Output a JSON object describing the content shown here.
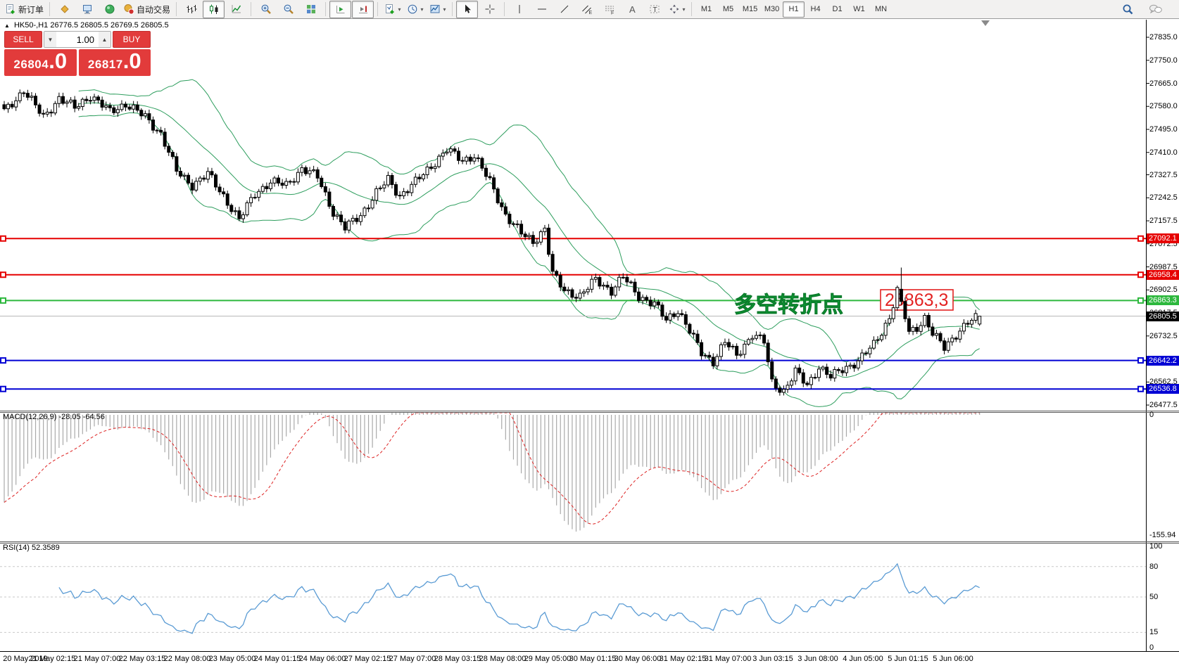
{
  "toolbar": {
    "buttons": {
      "new_order": "新订单",
      "autotrading": "自动交易"
    },
    "icons": [
      "new-order-icon",
      "market-watch-icon",
      "chart-window-icon",
      "data-window-icon",
      "autotrading-icon",
      "bar-chart-icon",
      "candlestick-chart-icon",
      "line-chart-icon",
      "zoom-in-icon",
      "zoom-out-icon",
      "tile-windows-icon",
      "auto-scroll-icon",
      "chart-shift-icon",
      "indicators-icon",
      "periods-icon",
      "templates-icon",
      "cursor-icon",
      "crosshair-icon",
      "vertical-line-icon",
      "horizontal-line-icon",
      "trendline-icon",
      "channel-icon",
      "fibonacci-icon",
      "text-icon",
      "label-icon",
      "arrows-icon",
      "search-icon",
      "chat-icon"
    ],
    "timeframes": [
      "M1",
      "M5",
      "M15",
      "M30",
      "H1",
      "H4",
      "D1",
      "W1",
      "MN"
    ],
    "active_timeframe": "H1"
  },
  "chart": {
    "header": {
      "collapse_icon": "▲",
      "symbol_period": "HK50-,H1",
      "open": "26776.5",
      "high": "26805.5",
      "low": "26769.5",
      "close": "26805.5"
    },
    "trade_panel": {
      "sell_label": "SELL",
      "buy_label": "BUY",
      "volume": "1.00",
      "sell_price": "26804",
      "sell_price_fraction": ".0",
      "buy_price": "26817",
      "buy_price_fraction": ".0",
      "accent_red": "#e23b3b"
    },
    "annotation": {
      "text": "多空转折点",
      "price_box": "26863,3"
    },
    "price_axis_ticks": [
      27835.0,
      27750.0,
      27665.0,
      27580.0,
      27495.0,
      27410.0,
      27327.5,
      27242.5,
      27157.5,
      27072.5,
      26987.5,
      26902.5,
      26817.5,
      26732.5,
      26562.5,
      26477.5
    ],
    "hlines": [
      {
        "price": 27092.1,
        "label": "27092.1",
        "color": "#e60000"
      },
      {
        "price": 26958.4,
        "label": "26958.4",
        "color": "#e60000"
      },
      {
        "price": 26863.3,
        "label": "26863.3",
        "color": "#2db83d"
      },
      {
        "price": 26642.2,
        "label": "26642.2",
        "color": "#0000d4"
      },
      {
        "price": 26536.8,
        "label": "26536.8",
        "color": "#0000d4"
      }
    ],
    "bid_line": {
      "price": 26805.5,
      "label": "26805.5"
    }
  },
  "indicators": {
    "macd": {
      "title": "MACD(12,26,9) -28.05 -64.56",
      "zero_label": "0",
      "min_label": "-155.94",
      "params": [
        12,
        26,
        9
      ],
      "main_value": -28.05,
      "signal_value": -64.56,
      "min_value": -155.94
    },
    "rsi": {
      "title": "RSI(14) 52.3589",
      "period": 14,
      "value": 52.3589,
      "levels": [
        {
          "value": 100,
          "label": "100"
        },
        {
          "value": 80,
          "label": "80"
        },
        {
          "value": 50,
          "label": "50"
        },
        {
          "value": 15,
          "label": "15"
        },
        {
          "value": 0,
          "label": "0"
        }
      ],
      "dashed_levels": [
        80,
        50,
        15
      ]
    }
  },
  "time_axis": {
    "labels": [
      "20 May 2019",
      "21 May 02:15",
      "21 May 07:00",
      "22 May 03:15",
      "22 May 08:00",
      "23 May 05:00",
      "24 May 01:15",
      "24 May 06:00",
      "27 May 02:15",
      "27 May 07:00",
      "28 May 03:15",
      "28 May 08:00",
      "29 May 05:00",
      "30 May 01:15",
      "30 May 06:00",
      "31 May 02:15",
      "31 May 07:00",
      "3 Jun 03:15",
      "3 Jun 08:00",
      "4 Jun 05:00",
      "5 Jun 01:15",
      "5 Jun 06:00"
    ]
  },
  "chart_data": {
    "type": "candlestick",
    "symbol": "HK50-",
    "period": "H1",
    "visible_price_range": [
      26477.5,
      27835.0
    ],
    "candle_count": 250,
    "close_waypoints": [
      [
        0,
        27560
      ],
      [
        5,
        27640
      ],
      [
        10,
        27540
      ],
      [
        14,
        27610
      ],
      [
        18,
        27575
      ],
      [
        22,
        27620
      ],
      [
        27,
        27560
      ],
      [
        31,
        27590
      ],
      [
        36,
        27540
      ],
      [
        40,
        27480
      ],
      [
        44,
        27340
      ],
      [
        48,
        27290
      ],
      [
        52,
        27330
      ],
      [
        56,
        27250
      ],
      [
        60,
        27160
      ],
      [
        64,
        27260
      ],
      [
        68,
        27300
      ],
      [
        72,
        27290
      ],
      [
        76,
        27350
      ],
      [
        80,
        27320
      ],
      [
        84,
        27190
      ],
      [
        87,
        27130
      ],
      [
        91,
        27180
      ],
      [
        95,
        27260
      ],
      [
        98,
        27310
      ],
      [
        101,
        27250
      ],
      [
        105,
        27300
      ],
      [
        109,
        27360
      ],
      [
        113,
        27420
      ],
      [
        117,
        27380
      ],
      [
        120,
        27400
      ],
      [
        124,
        27300
      ],
      [
        128,
        27180
      ],
      [
        132,
        27110
      ],
      [
        135,
        27080
      ],
      [
        138,
        27130
      ],
      [
        140,
        26960
      ],
      [
        143,
        26900
      ],
      [
        147,
        26880
      ],
      [
        151,
        26940
      ],
      [
        155,
        26900
      ],
      [
        158,
        26950
      ],
      [
        162,
        26880
      ],
      [
        166,
        26850
      ],
      [
        169,
        26790
      ],
      [
        172,
        26830
      ],
      [
        175,
        26750
      ],
      [
        178,
        26670
      ],
      [
        181,
        26640
      ],
      [
        184,
        26710
      ],
      [
        187,
        26660
      ],
      [
        191,
        26740
      ],
      [
        194,
        26710
      ],
      [
        196,
        26560
      ],
      [
        199,
        26530
      ],
      [
        202,
        26600
      ],
      [
        205,
        26550
      ],
      [
        208,
        26620
      ],
      [
        211,
        26580
      ],
      [
        214,
        26610
      ],
      [
        218,
        26640
      ],
      [
        222,
        26700
      ],
      [
        226,
        26800
      ],
      [
        228,
        26900
      ],
      [
        229,
        26860
      ],
      [
        231,
        26745
      ],
      [
        233,
        26765
      ],
      [
        235,
        26800
      ],
      [
        237,
        26740
      ],
      [
        240,
        26690
      ],
      [
        243,
        26740
      ],
      [
        246,
        26780
      ],
      [
        249,
        26805.5
      ]
    ],
    "last_candle": {
      "open": 26776.5,
      "high": 26805.5,
      "low": 26769.5,
      "close": 26805.5
    },
    "spike_candle": {
      "index": 229,
      "open": 26905,
      "high": 26985,
      "close": 26860
    },
    "overlays": {
      "bollinger_period": 20,
      "bollinger_deviation": 2,
      "band_color": "#2e9e5e"
    },
    "hline_prices": [
      27092.1,
      26958.4,
      26863.3,
      26642.2,
      26536.8
    ],
    "bid_price": 26805.5
  }
}
